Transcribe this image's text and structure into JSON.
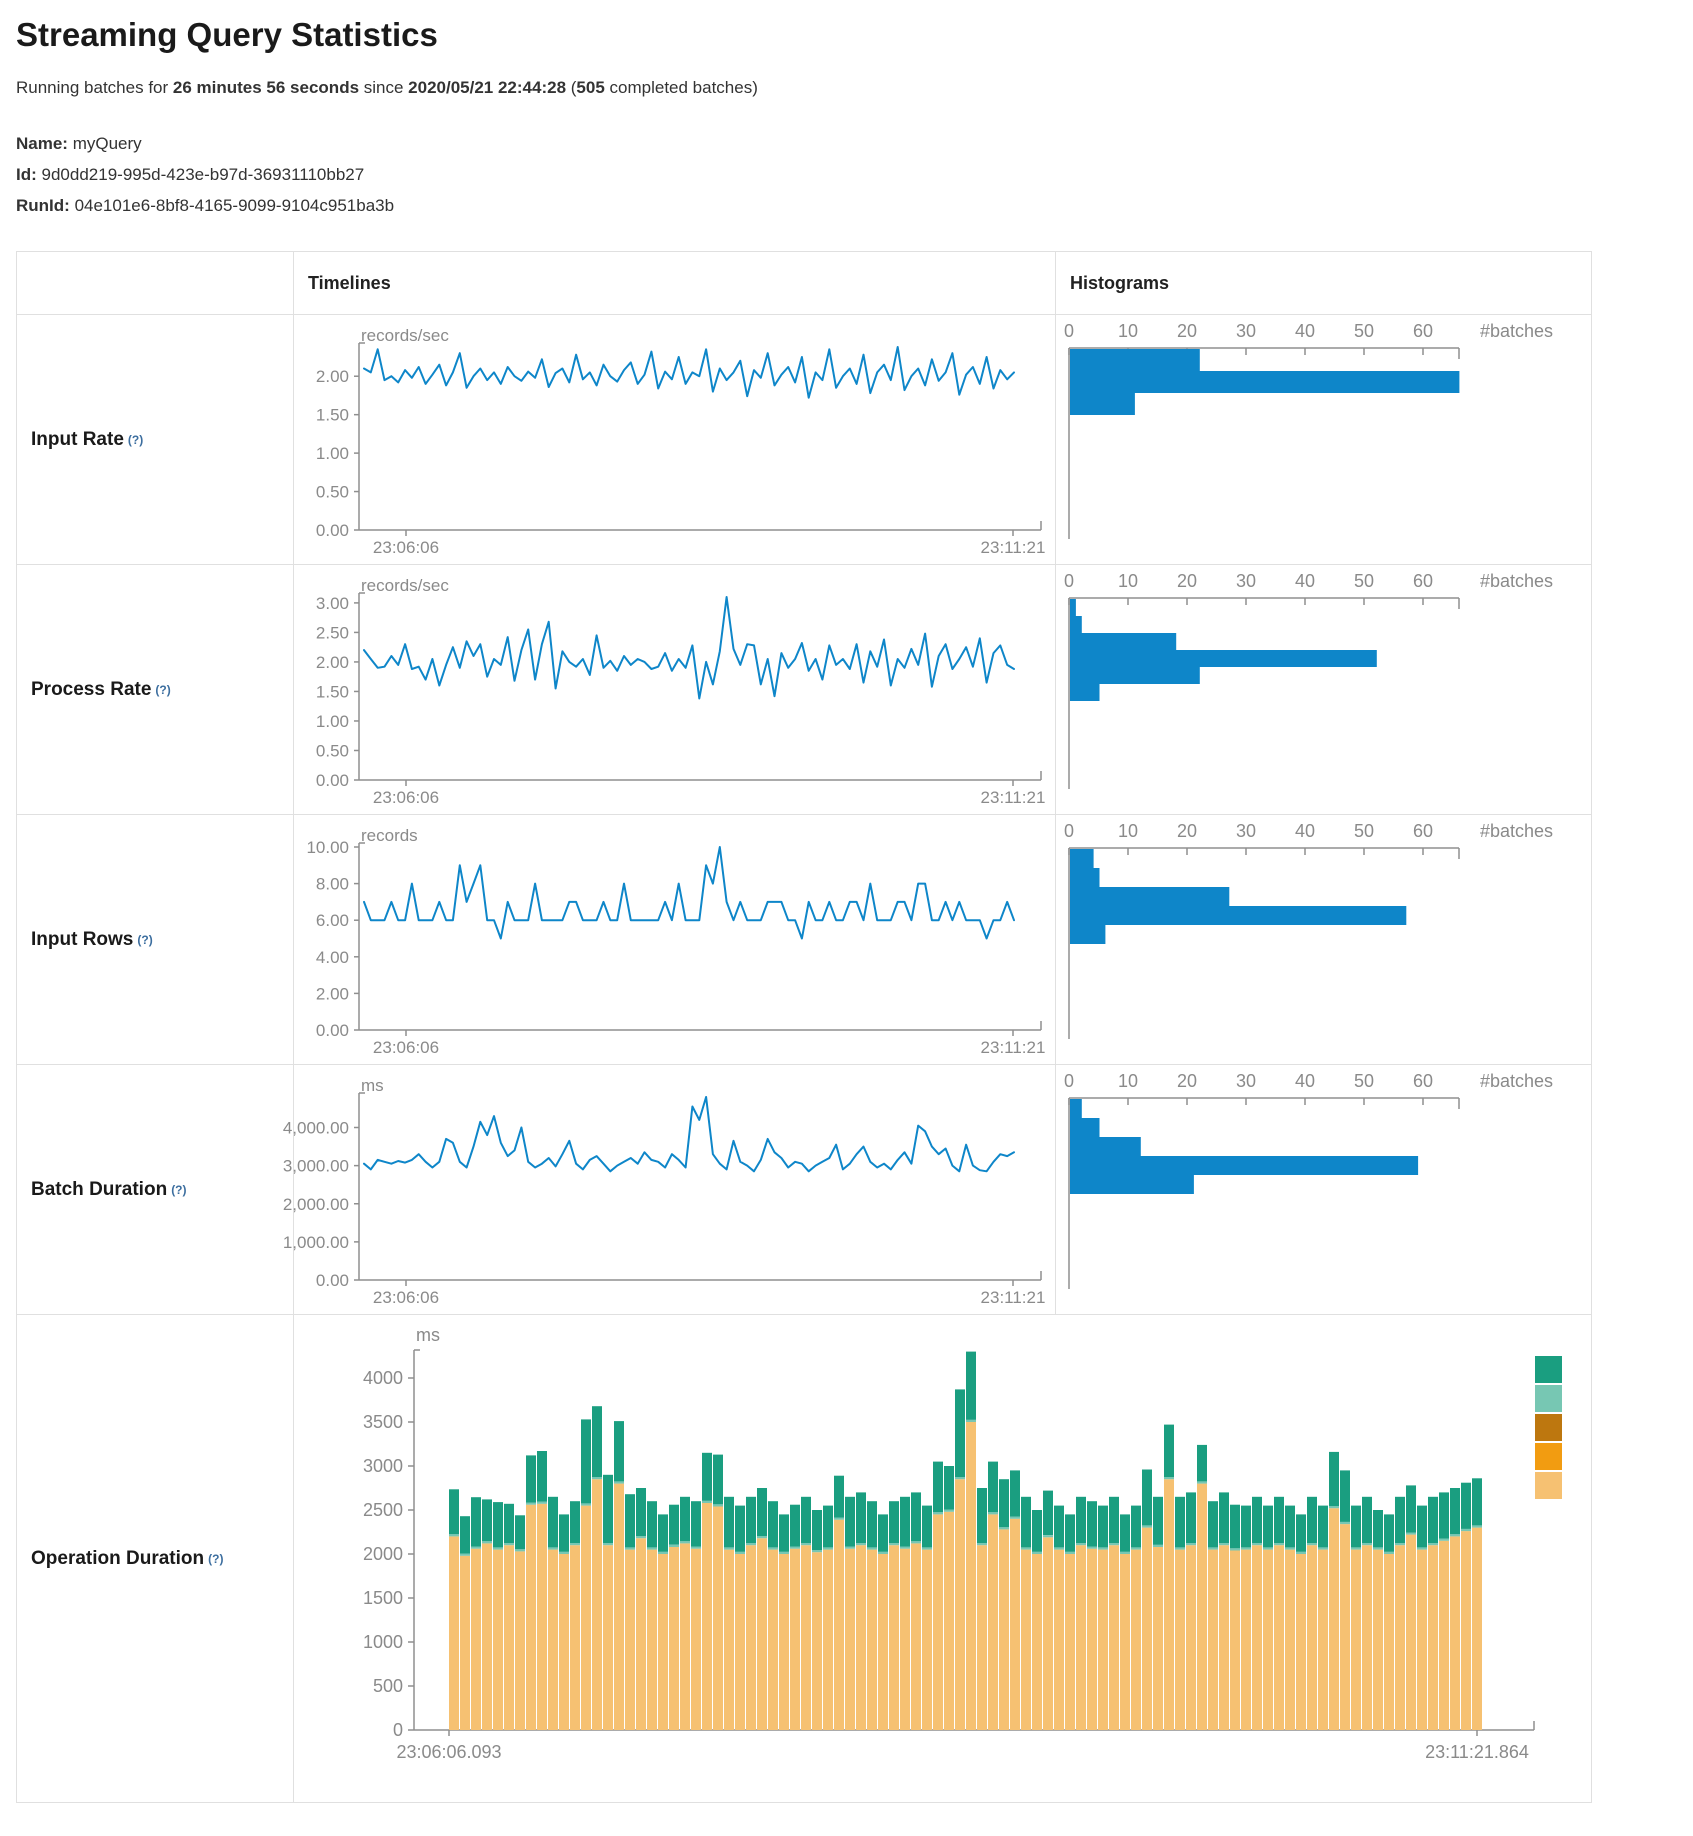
{
  "page": {
    "title": "Streaming Query Statistics",
    "subtitle_parts": [
      "Running batches for ",
      "26 minutes 56 seconds",
      " since ",
      "2020/05/21 22:44:28",
      " (",
      "505",
      " completed batches)"
    ],
    "name_label": "Name:",
    "name_value": "myQuery",
    "id_label": "Id:",
    "id_value": "9d0dd219-995d-423e-b97d-36931110bb27",
    "runid_label": "RunId:",
    "runid_value": "04e101e6-8bf8-4165-9099-9104c951ba3b"
  },
  "table": {
    "col_timelines": "Timelines",
    "col_histograms": "Histograms",
    "help_marker": "(?)",
    "batches_label": "#batches",
    "hist_ticks": [
      0,
      10,
      20,
      30,
      40,
      50,
      60
    ]
  },
  "colors": {
    "accent_blue": "#0E86C9",
    "axis": "#8F8F8F",
    "tick_text": "#8A8A8A",
    "border": "#E0E0E0",
    "teal": "#1A9E80",
    "light_teal": "#77C7B3",
    "brown": "#BD770F",
    "orange": "#F29C11",
    "tan": "#F6C172"
  },
  "metrics": [
    {
      "key": "input-rate",
      "label": "Input Rate",
      "unit": "records/sec",
      "x_start": "23:06:06",
      "x_end": "23:11:21",
      "y_ticks": [
        {
          "v": 2,
          "t": "2.00"
        },
        {
          "v": 1.5,
          "t": "1.50"
        },
        {
          "v": 1,
          "t": "1.00"
        },
        {
          "v": 0.5,
          "t": "0.50"
        },
        {
          "v": 0,
          "t": "0.00"
        }
      ],
      "timeline": [
        2.1,
        2.05,
        2.35,
        1.95,
        2.0,
        1.92,
        2.08,
        1.98,
        2.12,
        1.9,
        2.02,
        2.15,
        1.88,
        2.05,
        2.3,
        1.85,
        2.0,
        2.1,
        1.95,
        2.05,
        1.9,
        2.12,
        2.0,
        1.94,
        2.06,
        1.98,
        2.22,
        1.86,
        2.04,
        2.1,
        1.92,
        2.28,
        1.96,
        2.05,
        1.88,
        2.15,
        2.0,
        1.93,
        2.08,
        2.18,
        1.9,
        2.02,
        2.32,
        1.84,
        2.06,
        1.96,
        2.25,
        1.9,
        2.05,
        2.0,
        2.35,
        1.8,
        2.1,
        1.95,
        2.05,
        2.2,
        1.74,
        2.08,
        1.98,
        2.3,
        1.88,
        2.02,
        2.12,
        1.92,
        2.25,
        1.72,
        2.05,
        1.95,
        2.35,
        1.85,
        2.0,
        2.1,
        1.9,
        2.28,
        1.78,
        2.05,
        2.15,
        1.95,
        2.38,
        1.82,
        2.0,
        2.1,
        1.88,
        2.22,
        1.94,
        2.05,
        2.3,
        1.76,
        2.02,
        2.12,
        1.9,
        2.25,
        1.84,
        2.08,
        1.96,
        2.05
      ],
      "histogram": [
        22,
        66,
        11
      ]
    },
    {
      "key": "process-rate",
      "label": "Process Rate",
      "unit": "records/sec",
      "x_start": "23:06:06",
      "x_end": "23:11:21",
      "y_ticks": [
        {
          "v": 3,
          "t": "3.00"
        },
        {
          "v": 2.5,
          "t": "2.50"
        },
        {
          "v": 2,
          "t": "2.00"
        },
        {
          "v": 1.5,
          "t": "1.50"
        },
        {
          "v": 1,
          "t": "1.00"
        },
        {
          "v": 0.5,
          "t": "0.50"
        },
        {
          "v": 0,
          "t": "0.00"
        }
      ],
      "timeline": [
        2.2,
        2.05,
        1.9,
        1.92,
        2.1,
        1.95,
        2.3,
        1.88,
        1.92,
        1.7,
        2.05,
        1.6,
        1.95,
        2.25,
        1.9,
        2.35,
        2.1,
        2.3,
        1.75,
        2.05,
        1.95,
        2.42,
        1.68,
        2.2,
        2.55,
        1.7,
        2.3,
        2.68,
        1.55,
        2.18,
        2.0,
        1.92,
        2.05,
        1.78,
        2.45,
        1.9,
        2.02,
        1.85,
        2.1,
        1.95,
        2.05,
        2.0,
        1.88,
        1.92,
        2.15,
        1.85,
        2.05,
        1.9,
        2.28,
        1.38,
        2.0,
        1.62,
        2.18,
        3.1,
        2.22,
        1.95,
        2.3,
        2.28,
        1.62,
        2.05,
        1.42,
        2.15,
        1.9,
        2.05,
        2.32,
        1.85,
        2.05,
        1.7,
        2.28,
        1.95,
        2.05,
        1.88,
        2.3,
        1.65,
        2.18,
        1.92,
        2.38,
        1.6,
        2.05,
        1.9,
        2.22,
        1.95,
        2.48,
        1.58,
        2.1,
        2.3,
        1.88,
        2.05,
        2.25,
        1.92,
        2.4,
        1.65,
        2.15,
        2.28,
        1.95,
        1.88
      ],
      "histogram": [
        1,
        2,
        18,
        52,
        22,
        5
      ]
    },
    {
      "key": "input-rows",
      "label": "Input Rows",
      "unit": "records",
      "x_start": "23:06:06",
      "x_end": "23:11:21",
      "y_ticks": [
        {
          "v": 10,
          "t": "10.00"
        },
        {
          "v": 8,
          "t": "8.00"
        },
        {
          "v": 6,
          "t": "6.00"
        },
        {
          "v": 4,
          "t": "4.00"
        },
        {
          "v": 2,
          "t": "2.00"
        },
        {
          "v": 0,
          "t": "0.00"
        }
      ],
      "timeline": [
        7,
        6,
        6,
        6,
        7,
        6,
        6,
        8,
        6,
        6,
        6,
        7,
        6,
        6,
        9,
        7,
        8,
        9,
        6,
        6,
        5,
        7,
        6,
        6,
        6,
        8,
        6,
        6,
        6,
        6,
        7,
        7,
        6,
        6,
        6,
        7,
        6,
        6,
        8,
        6,
        6,
        6,
        6,
        6,
        7,
        6,
        8,
        6,
        6,
        6,
        9,
        8,
        10,
        7,
        6,
        7,
        6,
        6,
        6,
        7,
        7,
        7,
        6,
        6,
        5,
        7,
        6,
        6,
        7,
        6,
        6,
        7,
        7,
        6,
        8,
        6,
        6,
        6,
        7,
        7,
        6,
        8,
        8,
        6,
        6,
        7,
        6,
        7,
        6,
        6,
        6,
        5,
        6,
        6,
        7,
        6
      ],
      "histogram": [
        4,
        5,
        27,
        57,
        6
      ]
    },
    {
      "key": "batch-duration",
      "label": "Batch Duration",
      "unit": "ms",
      "x_start": "23:06:06",
      "x_end": "23:11:21",
      "y_ticks": [
        {
          "v": 4000,
          "t": "4,000.00"
        },
        {
          "v": 3000,
          "t": "3,000.00"
        },
        {
          "v": 2000,
          "t": "2,000.00"
        },
        {
          "v": 1000,
          "t": "1,000.00"
        },
        {
          "v": 0,
          "t": "0.00"
        }
      ],
      "timeline": [
        3050,
        2900,
        3150,
        3100,
        3050,
        3120,
        3080,
        3150,
        3300,
        3100,
        2950,
        3100,
        3700,
        3600,
        3100,
        2950,
        3500,
        4150,
        3800,
        4300,
        3600,
        3250,
        3400,
        4000,
        3100,
        2950,
        3050,
        3200,
        2980,
        3300,
        3650,
        3050,
        2900,
        3150,
        3250,
        3050,
        2850,
        3000,
        3100,
        3200,
        3050,
        3350,
        3150,
        3100,
        2950,
        3300,
        3150,
        2950,
        4550,
        4200,
        4800,
        3300,
        3050,
        2900,
        3650,
        3100,
        3000,
        2850,
        3150,
        3700,
        3350,
        3200,
        2950,
        3100,
        3050,
        2850,
        3000,
        3100,
        3200,
        3550,
        2900,
        3050,
        3300,
        3500,
        3100,
        2950,
        3050,
        2900,
        3150,
        3350,
        3050,
        4050,
        3900,
        3500,
        3300,
        3450,
        3000,
        2850,
        3550,
        3000,
        2880,
        2850,
        3100,
        3300,
        3250,
        3350
      ],
      "histogram": [
        2,
        5,
        12,
        59,
        21
      ]
    }
  ],
  "operation": {
    "key": "operation-duration",
    "label": "Operation Duration",
    "unit": "ms",
    "x_start": "23:06:06.093",
    "x_end": "23:11:21.864",
    "y_ticks": [
      {
        "v": 4000,
        "t": "4000"
      },
      {
        "v": 3500,
        "t": "3500"
      },
      {
        "v": 3000,
        "t": "3000"
      },
      {
        "v": 2500,
        "t": "2500"
      },
      {
        "v": 2000,
        "t": "2000"
      },
      {
        "v": 1500,
        "t": "1500"
      },
      {
        "v": 1000,
        "t": "1000"
      },
      {
        "v": 500,
        "t": "500"
      },
      {
        "v": 0,
        "t": "0"
      }
    ],
    "legend_colors": [
      "#1A9E80",
      "#77C7B3",
      "#BD770F",
      "#F29C11",
      "#F6C172"
    ],
    "sliver_ms": 25,
    "bars": [
      [
        2200,
        510
      ],
      [
        1980,
        425
      ],
      [
        2060,
        560
      ],
      [
        2120,
        475
      ],
      [
        2050,
        515
      ],
      [
        2100,
        445
      ],
      [
        2030,
        385
      ],
      [
        2560,
        535
      ],
      [
        2570,
        575
      ],
      [
        2050,
        575
      ],
      [
        2000,
        425
      ],
      [
        2100,
        475
      ],
      [
        2550,
        955
      ],
      [
        2850,
        805
      ],
      [
        2100,
        775
      ],
      [
        2800,
        685
      ],
      [
        2050,
        605
      ],
      [
        2180,
        545
      ],
      [
        2050,
        525
      ],
      [
        2000,
        425
      ],
      [
        2080,
        455
      ],
      [
        2120,
        505
      ],
      [
        2060,
        515
      ],
      [
        2580,
        545
      ],
      [
        2540,
        565
      ],
      [
        2050,
        575
      ],
      [
        2000,
        525
      ],
      [
        2100,
        525
      ],
      [
        2180,
        545
      ],
      [
        2050,
        525
      ],
      [
        2000,
        425
      ],
      [
        2060,
        475
      ],
      [
        2100,
        525
      ],
      [
        2020,
        455
      ],
      [
        2050,
        475
      ],
      [
        2390,
        475
      ],
      [
        2060,
        565
      ],
      [
        2100,
        575
      ],
      [
        2050,
        525
      ],
      [
        2000,
        425
      ],
      [
        2100,
        475
      ],
      [
        2060,
        565
      ],
      [
        2120,
        555
      ],
      [
        2050,
        475
      ],
      [
        2450,
        575
      ],
      [
        2480,
        495
      ],
      [
        2850,
        995
      ],
      [
        3500,
        775
      ],
      [
        2100,
        625
      ],
      [
        2450,
        575
      ],
      [
        2280,
        545
      ],
      [
        2400,
        525
      ],
      [
        2050,
        575
      ],
      [
        2000,
        475
      ],
      [
        2190,
        505
      ],
      [
        2050,
        475
      ],
      [
        2000,
        425
      ],
      [
        2100,
        525
      ],
      [
        2060,
        515
      ],
      [
        2050,
        475
      ],
      [
        2100,
        525
      ],
      [
        2000,
        425
      ],
      [
        2050,
        475
      ],
      [
        2300,
        635
      ],
      [
        2080,
        545
      ],
      [
        2850,
        595
      ],
      [
        2050,
        575
      ],
      [
        2100,
        575
      ],
      [
        2800,
        415
      ],
      [
        2050,
        525
      ],
      [
        2100,
        575
      ],
      [
        2040,
        495
      ],
      [
        2050,
        475
      ],
      [
        2100,
        525
      ],
      [
        2050,
        475
      ],
      [
        2100,
        525
      ],
      [
        2050,
        475
      ],
      [
        2000,
        425
      ],
      [
        2100,
        525
      ],
      [
        2050,
        475
      ],
      [
        2520,
        615
      ],
      [
        2340,
        585
      ],
      [
        2050,
        475
      ],
      [
        2100,
        525
      ],
      [
        2050,
        425
      ],
      [
        2000,
        425
      ],
      [
        2100,
        525
      ],
      [
        2220,
        535
      ],
      [
        2050,
        475
      ],
      [
        2100,
        525
      ],
      [
        2150,
        525
      ],
      [
        2200,
        525
      ],
      [
        2260,
        525
      ],
      [
        2300,
        535
      ]
    ]
  }
}
